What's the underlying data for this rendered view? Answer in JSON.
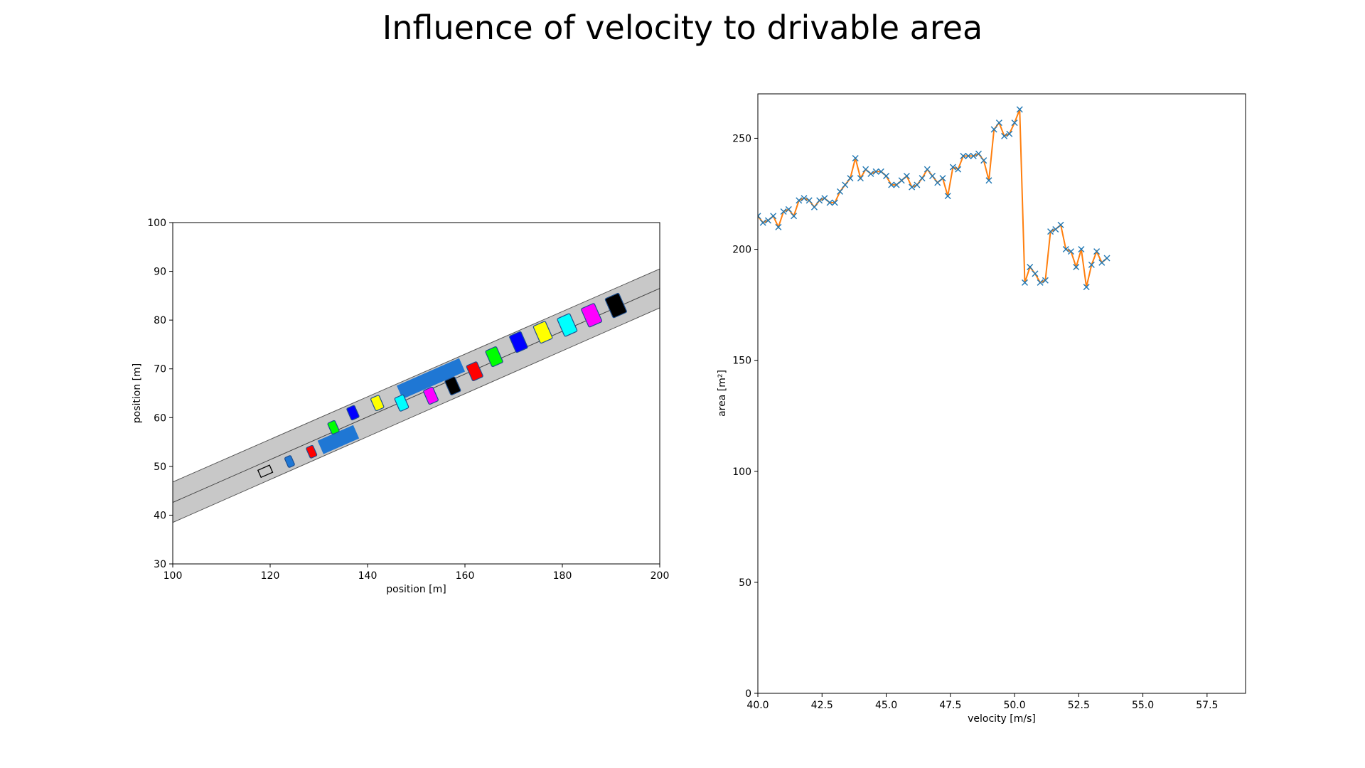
{
  "figure": {
    "title": "Influence of velocity to drivable area"
  },
  "chart_data": [
    {
      "type": "scenario",
      "title": "",
      "xlabel": "position [m]",
      "ylabel": "position [m]",
      "xlim": [
        100,
        200
      ],
      "ylim": [
        30,
        100
      ],
      "xticks": [
        100,
        120,
        140,
        160,
        180,
        200
      ],
      "yticks": [
        30,
        40,
        50,
        60,
        70,
        80,
        90,
        100
      ],
      "road": {
        "color": "#c8c8c8",
        "left_edge": [
          [
            100,
            46.8
          ],
          [
            200,
            90.5
          ]
        ],
        "right_edge": [
          [
            100,
            38.5
          ],
          [
            200,
            82.5
          ]
        ],
        "center_line": [
          [
            100,
            42.6
          ],
          [
            200,
            86.5
          ]
        ]
      },
      "ego_vehicle": {
        "x": 119,
        "y": 49,
        "color": "#000000"
      },
      "obstacles": [
        {
          "x": 134,
          "y": 55.5,
          "length": 8,
          "width": 3,
          "color": "#1f77d4"
        },
        {
          "x": 153,
          "y": 68,
          "length": 14,
          "width": 3,
          "color": "#1f77d4"
        }
      ],
      "reachable_sets": [
        {
          "x": 124,
          "y": 51,
          "color": "#1f77d4"
        },
        {
          "x": 128.5,
          "y": 53,
          "color": "#ff0000"
        },
        {
          "x": 133,
          "y": 58,
          "color": "#00ff00"
        },
        {
          "x": 137,
          "y": 61,
          "color": "#0000ff"
        },
        {
          "x": 142,
          "y": 63,
          "color": "#ffff00"
        },
        {
          "x": 147,
          "y": 63,
          "color": "#00ffff"
        },
        {
          "x": 153,
          "y": 64.5,
          "color": "#ff00ff"
        },
        {
          "x": 157.5,
          "y": 66.5,
          "color": "#000000"
        },
        {
          "x": 162,
          "y": 69.5,
          "color": "#ff0000"
        },
        {
          "x": 166,
          "y": 72.5,
          "color": "#00ff00"
        },
        {
          "x": 171,
          "y": 75.5,
          "color": "#0000ff"
        },
        {
          "x": 176,
          "y": 77.5,
          "color": "#ffff00"
        },
        {
          "x": 181,
          "y": 79,
          "color": "#00ffff"
        },
        {
          "x": 186,
          "y": 81,
          "color": "#ff00ff"
        },
        {
          "x": 191,
          "y": 83,
          "color": "#000000"
        }
      ]
    },
    {
      "type": "line",
      "title": "",
      "xlabel": "velocity [m/s]",
      "ylabel": "area [m²]",
      "xlim": [
        40,
        59
      ],
      "ylim": [
        0,
        270
      ],
      "xticks": [
        40.0,
        42.5,
        45.0,
        47.5,
        50.0,
        52.5,
        55.0,
        57.5
      ],
      "yticks": [
        0,
        50,
        100,
        150,
        200,
        250
      ],
      "series": [
        {
          "line_color": "#ff7f0e",
          "marker_color": "#1f77b4",
          "marker": "x",
          "x": [
            40.0,
            40.2,
            40.4,
            40.6,
            40.8,
            41.0,
            41.2,
            41.4,
            41.6,
            41.8,
            42.0,
            42.2,
            42.4,
            42.6,
            42.8,
            43.0,
            43.2,
            43.4,
            43.6,
            43.8,
            44.0,
            44.2,
            44.4,
            44.6,
            44.8,
            45.0,
            45.2,
            45.4,
            45.6,
            45.8,
            46.0,
            46.2,
            46.4,
            46.6,
            46.8,
            47.0,
            47.2,
            47.4,
            47.6,
            47.8,
            48.0,
            48.2,
            48.4,
            48.6,
            48.8,
            49.0,
            49.2,
            49.4,
            49.6,
            49.8,
            50.0,
            50.2,
            50.4,
            50.6,
            50.8,
            51.0,
            51.2,
            51.4,
            51.6,
            51.8,
            52.0,
            52.2,
            52.4,
            52.6,
            52.8,
            53.0,
            53.2,
            53.4,
            53.6
          ],
          "y": [
            215,
            212,
            213,
            215,
            210,
            217,
            218,
            215,
            222,
            223,
            222,
            219,
            222,
            223,
            221,
            221,
            226,
            229,
            232,
            241,
            232,
            236,
            234,
            235,
            235,
            233,
            229,
            229,
            231,
            233,
            228,
            229,
            232,
            236,
            233,
            230,
            232,
            224,
            237,
            236,
            242,
            242,
            242,
            243,
            240,
            231,
            254,
            257,
            251,
            252,
            257,
            263,
            185,
            192,
            189,
            185,
            186,
            208,
            209,
            211,
            200,
            199,
            192,
            200,
            183,
            193,
            199,
            194,
            196
          ]
        }
      ]
    }
  ]
}
